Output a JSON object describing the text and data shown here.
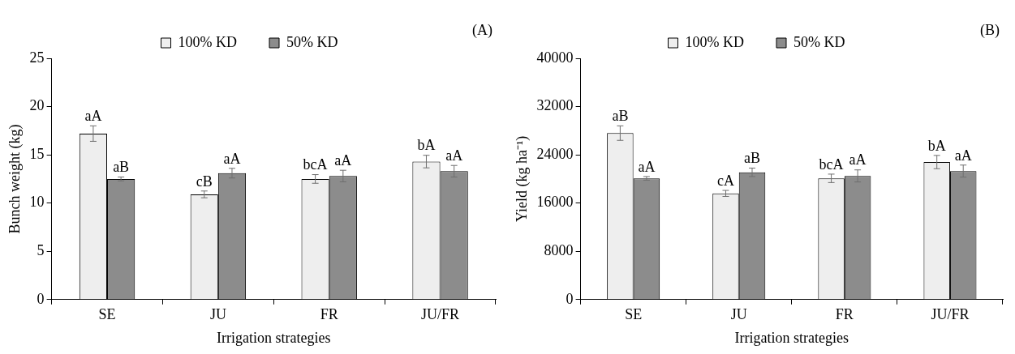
{
  "chart_data": [
    {
      "type": "bar",
      "ylabel": "Bunch weight (kg)",
      "xlabel": "Irrigation strategies",
      "categories": [
        "SE",
        "JU",
        "FR",
        "JU/FR"
      ],
      "series": [
        {
          "name": "100% KD",
          "color": "#eeeeee",
          "values": [
            17.2,
            10.9,
            12.5,
            14.3
          ],
          "errors": [
            0.8,
            0.35,
            0.45,
            0.65
          ],
          "value_labels": [
            "aA",
            "cB",
            "bcA",
            "bA"
          ]
        },
        {
          "name": "50% KD",
          "color": "#8c8c8c",
          "values": [
            12.5,
            13.1,
            12.8,
            13.3
          ],
          "errors": [
            0.2,
            0.5,
            0.6,
            0.6
          ],
          "value_labels": [
            "aB",
            "aA",
            "aA",
            "aA"
          ]
        }
      ],
      "ylim": [
        0,
        25
      ],
      "yticks": [
        0,
        5,
        10,
        15,
        20,
        25
      ],
      "grid": false,
      "legend": "top",
      "annotations": [
        "(A)"
      ]
    },
    {
      "type": "bar",
      "ylabel": "Yield (kg ha⁻¹)",
      "xlabel": "Irrigation strategies",
      "categories": [
        "SE",
        "JU",
        "FR",
        "JU/FR"
      ],
      "series": [
        {
          "name": "100% KD",
          "color": "#eeeeee",
          "values": [
            27600,
            17600,
            20100,
            22800
          ],
          "errors": [
            1200,
            500,
            700,
            1100
          ],
          "value_labels": [
            "aB",
            "cA",
            "bcA",
            "bA"
          ]
        },
        {
          "name": "50% KD",
          "color": "#8c8c8c",
          "values": [
            20100,
            21100,
            20500,
            21300
          ],
          "errors": [
            300,
            700,
            1000,
            1000
          ],
          "value_labels": [
            "aA",
            "aB",
            "aA",
            "aA"
          ]
        }
      ],
      "ylim": [
        0,
        40000
      ],
      "yticks": [
        0,
        8000,
        16000,
        24000,
        32000,
        40000
      ],
      "grid": false,
      "legend": "top",
      "annotations": [
        "(B)"
      ]
    }
  ]
}
